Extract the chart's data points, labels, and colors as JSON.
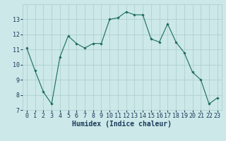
{
  "x": [
    0,
    1,
    2,
    3,
    4,
    5,
    6,
    7,
    8,
    9,
    10,
    11,
    12,
    13,
    14,
    15,
    16,
    17,
    18,
    19,
    20,
    21,
    22,
    23
  ],
  "y": [
    11.1,
    9.6,
    8.2,
    7.4,
    10.5,
    11.9,
    11.4,
    11.1,
    11.4,
    11.4,
    13.0,
    13.1,
    13.5,
    13.3,
    13.3,
    11.7,
    11.5,
    12.7,
    11.5,
    10.8,
    9.5,
    9.0,
    7.4,
    7.8
  ],
  "line_color": "#1a6b5e",
  "marker": "D",
  "marker_size": 1.8,
  "bg_color": "#cce8e8",
  "grid_color": "#aacccc",
  "xlabel": "Humidex (Indice chaleur)",
  "xlim": [
    -0.5,
    23.5
  ],
  "ylim": [
    7,
    14
  ],
  "yticks": [
    7,
    8,
    9,
    10,
    11,
    12,
    13
  ],
  "xticks": [
    0,
    1,
    2,
    3,
    4,
    5,
    6,
    7,
    8,
    9,
    10,
    11,
    12,
    13,
    14,
    15,
    16,
    17,
    18,
    19,
    20,
    21,
    22,
    23
  ],
  "xtick_labels": [
    "0",
    "1",
    "2",
    "3",
    "4",
    "5",
    "6",
    "7",
    "8",
    "9",
    "10",
    "11",
    "12",
    "13",
    "14",
    "15",
    "16",
    "17",
    "18",
    "19",
    "20",
    "21",
    "22",
    "23"
  ],
  "font_color": "#1a3a5c",
  "tick_fontsize": 6,
  "xlabel_fontsize": 7,
  "linewidth": 0.8
}
